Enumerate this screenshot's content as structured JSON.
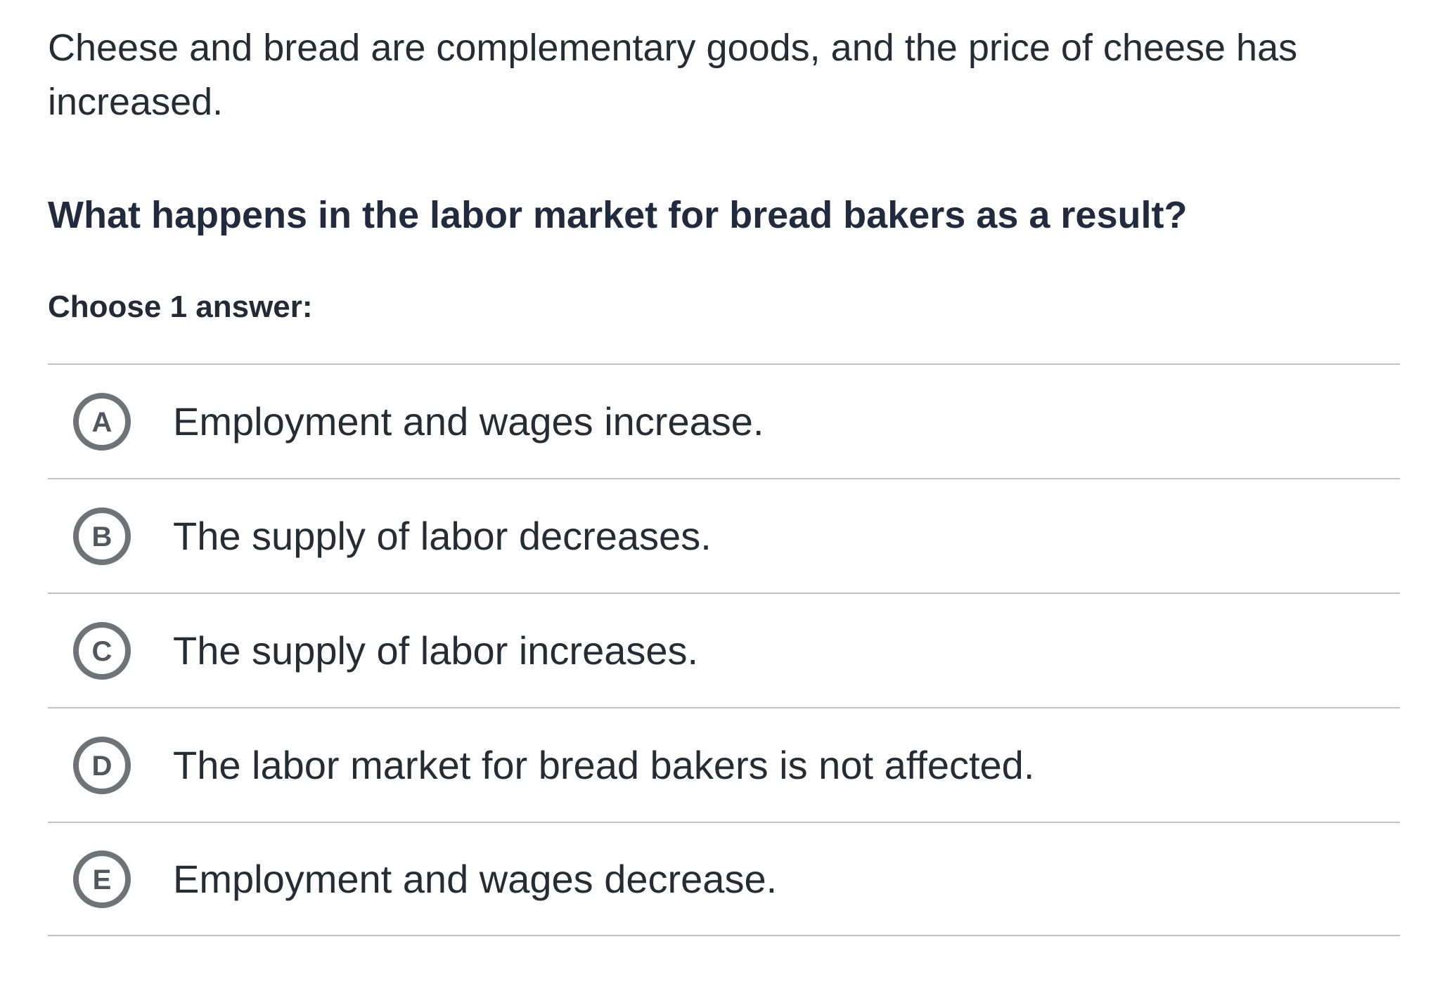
{
  "question": {
    "stem_lines": [
      "Cheese and bread are complementary goods, and the price of cheese has",
      "increased."
    ],
    "prompt": "What happens in the labor market for bread bakers as a result?",
    "choose_label": "Choose 1 answer:"
  },
  "choices": [
    {
      "letter": "A",
      "text": "Employment and wages increase."
    },
    {
      "letter": "B",
      "text": "The supply of labor decreases."
    },
    {
      "letter": "C",
      "text": "The supply of labor increases."
    },
    {
      "letter": "D",
      "text": "The labor market for bread bakers is not affected."
    },
    {
      "letter": "E",
      "text": "Employment and wages decrease."
    }
  ],
  "colors": {
    "background": "#ffffff",
    "text": "#262b34",
    "prompt_text": "#222b3d",
    "divider": "#bfc1c4",
    "radio_ring": "#6f7378",
    "radio_letter": "#51575f"
  }
}
